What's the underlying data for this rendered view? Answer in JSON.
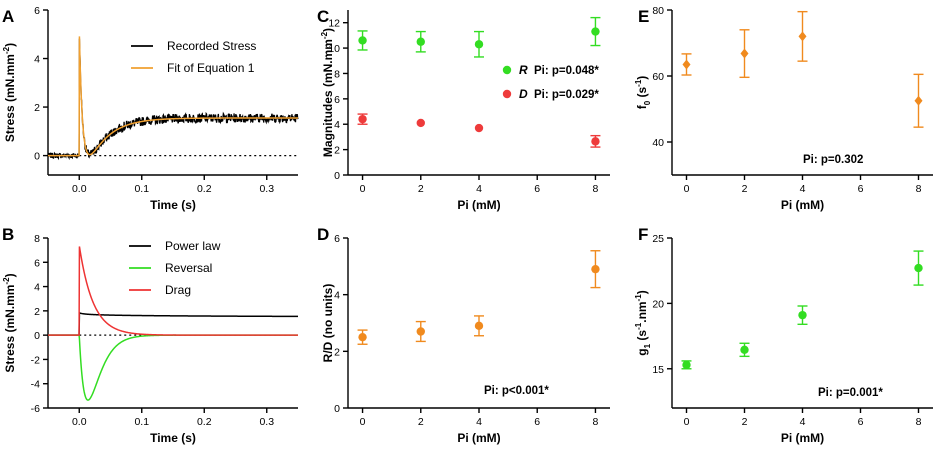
{
  "chart_data": [
    {
      "id": "A",
      "type": "line",
      "panel_label": "A",
      "xlabel": "Time (s)",
      "ylabel_parts": [
        "Stress (mN.mm",
        "-2",
        ")"
      ],
      "xlim": [
        -0.05,
        0.35
      ],
      "ylim": [
        -0.8,
        6
      ],
      "xticks": [
        0,
        0.1,
        0.2,
        0.3
      ],
      "xtick_labels": [
        "0.0",
        "0.1",
        "0.2",
        "0.3"
      ],
      "yticks": [
        0,
        2,
        4,
        6
      ],
      "ytick_labels": [
        "0",
        "2",
        "4",
        "6"
      ],
      "zero_line": true,
      "series": [
        {
          "name": "Recorded Stress",
          "color": "#000000",
          "model": "recorded"
        },
        {
          "name": "Fit of Equation 1",
          "color": "#f0a030",
          "model": "fit"
        }
      ],
      "legend_position": "top-right"
    },
    {
      "id": "B",
      "type": "line",
      "panel_label": "B",
      "xlabel": "Time (s)",
      "ylabel_parts": [
        "Stress (mN.mm",
        "-2",
        ")"
      ],
      "xlim": [
        -0.05,
        0.35
      ],
      "ylim": [
        -6,
        8
      ],
      "xticks": [
        0,
        0.1,
        0.2,
        0.3
      ],
      "xtick_labels": [
        "0.0",
        "0.1",
        "0.2",
        "0.3"
      ],
      "yticks": [
        -6,
        -4,
        -2,
        0,
        2,
        4,
        6,
        8
      ],
      "ytick_labels": [
        "-6",
        "-4",
        "-2",
        "0",
        "2",
        "4",
        "6",
        "8"
      ],
      "zero_line": true,
      "series": [
        {
          "name": "Power law",
          "color": "#000000",
          "model": "power"
        },
        {
          "name": "Reversal",
          "color": "#33dd22",
          "model": "reversal"
        },
        {
          "name": "Drag",
          "color": "#ee3333",
          "model": "drag"
        }
      ],
      "legend_position": "top-right"
    },
    {
      "id": "C",
      "type": "scatter",
      "panel_label": "C",
      "xlabel": "Pi (mM)",
      "ylabel_parts": [
        "Magnitudes (mN.mm",
        "-2",
        ")"
      ],
      "xlim": [
        -0.5,
        8.5
      ],
      "ylim": [
        0,
        13
      ],
      "xticks": [
        0,
        2,
        4,
        6,
        8
      ],
      "xtick_labels": [
        "0",
        "2",
        "4",
        "6",
        "8"
      ],
      "yticks": [
        0,
        2,
        4,
        6,
        8,
        10,
        12
      ],
      "ytick_labels": [
        "0",
        "2",
        "4",
        "6",
        "8",
        "10",
        "12"
      ],
      "series": [
        {
          "name": "R",
          "color": "#33dd22",
          "x": [
            0,
            2,
            4,
            8
          ],
          "y": [
            10.6,
            10.5,
            10.3,
            11.3
          ],
          "err": [
            0.75,
            0.8,
            1.0,
            1.1
          ],
          "legend_stat": "Pi: p=0.048*"
        },
        {
          "name": "D",
          "color": "#ee3b3b",
          "x": [
            0,
            2,
            4,
            8
          ],
          "y": [
            4.4,
            4.1,
            3.7,
            2.65
          ],
          "err": [
            0.4,
            0.0,
            0.0,
            0.45
          ],
          "legend_stat": "Pi: p=0.029*"
        }
      ],
      "legend_position": "middle-right"
    },
    {
      "id": "D",
      "type": "scatter",
      "panel_label": "D",
      "xlabel": "Pi (mM)",
      "ylabel": "R/D  (no units)",
      "xlim": [
        -0.5,
        8.5
      ],
      "ylim": [
        0,
        6
      ],
      "xticks": [
        0,
        2,
        4,
        6,
        8
      ],
      "xtick_labels": [
        "0",
        "2",
        "4",
        "6",
        "8"
      ],
      "yticks": [
        0,
        2,
        4,
        6
      ],
      "ytick_labels": [
        "0",
        "2",
        "4",
        "6"
      ],
      "series": [
        {
          "name": "R/D",
          "color": "#f08a1e",
          "x": [
            0,
            2,
            4,
            8
          ],
          "y": [
            2.5,
            2.7,
            2.9,
            4.9
          ],
          "err": [
            0.25,
            0.35,
            0.35,
            0.65
          ]
        }
      ],
      "annotation": "Pi: p<0.001*"
    },
    {
      "id": "E",
      "type": "scatter",
      "panel_label": "E",
      "xlabel": "Pi (mM)",
      "ylabel_parts": [
        "f",
        "0",
        " (s",
        "-1",
        ")"
      ],
      "xlim": [
        -0.5,
        8.5
      ],
      "ylim": [
        30,
        80
      ],
      "xticks": [
        0,
        2,
        4,
        6,
        8
      ],
      "xtick_labels": [
        "0",
        "2",
        "4",
        "6",
        "8"
      ],
      "yticks": [
        40,
        60,
        80
      ],
      "ytick_labels": [
        "40",
        "60",
        "80"
      ],
      "series": [
        {
          "name": "f0",
          "color": "#f08a1e",
          "x": [
            0,
            2,
            4,
            8
          ],
          "y": [
            63.5,
            66.8,
            72.0,
            52.5
          ],
          "err": [
            3.2,
            7.2,
            7.5,
            8.0
          ]
        }
      ],
      "annotation": "Pi: p=0.302"
    },
    {
      "id": "F",
      "type": "scatter",
      "panel_label": "F",
      "xlabel": "Pi (mM)",
      "ylabel_parts": [
        "g",
        "1",
        " (s",
        "-1",
        ".nm",
        "-1",
        ")"
      ],
      "xlim": [
        -0.5,
        8.5
      ],
      "ylim": [
        12,
        25
      ],
      "xticks": [
        0,
        2,
        4,
        6,
        8
      ],
      "xtick_labels": [
        "0",
        "2",
        "4",
        "6",
        "8"
      ],
      "yticks": [
        15,
        20,
        25
      ],
      "ytick_labels": [
        "15",
        "20",
        "25"
      ],
      "series": [
        {
          "name": "g1",
          "color": "#33dd22",
          "x": [
            0,
            2,
            4,
            8
          ],
          "y": [
            15.3,
            16.45,
            19.1,
            22.7
          ],
          "err": [
            0.3,
            0.5,
            0.7,
            1.3
          ]
        }
      ],
      "annotation": "Pi: p=0.001*"
    }
  ]
}
